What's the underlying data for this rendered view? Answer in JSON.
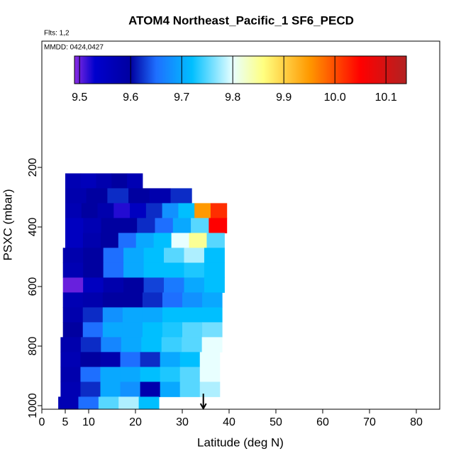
{
  "chart_data": {
    "type": "heatmap",
    "title": "ATOM4 Northeast_Pacific_1 SF6_PECD",
    "subtitle": "Flts: 1,2",
    "annotation": "MMDD: 0424,0427",
    "x_label": "Latitude (deg N)",
    "y_label": "PSXC (mbar)",
    "xlim": [
      0,
      85
    ],
    "xticks": [
      0,
      5,
      10,
      20,
      30,
      40,
      50,
      60,
      70,
      80
    ],
    "ylim": [
      1012,
      -224
    ],
    "yticks": [
      200,
      400,
      600,
      800,
      1000
    ],
    "marker_lat": 34.5,
    "colorbar": {
      "clim": [
        9.49,
        10.14
      ],
      "ticks": [
        9.5,
        9.6,
        9.7,
        9.8,
        9.9,
        {
          "value": 10.0,
          "label": "10.0"
        },
        10.1
      ],
      "colormap": [
        {
          "value": 9.49,
          "color": "#8a2be2"
        },
        {
          "value": 9.53,
          "color": "#0000cd"
        },
        {
          "value": 9.6,
          "color": "#0000a0"
        },
        {
          "value": 9.65,
          "color": "#1e6fff"
        },
        {
          "value": 9.72,
          "color": "#00bfff"
        },
        {
          "value": 9.8,
          "color": "#e8ffff"
        },
        {
          "value": 9.86,
          "color": "#ffff80"
        },
        {
          "value": 9.95,
          "color": "#ff9900"
        },
        {
          "value": 10.05,
          "color": "#ff0000"
        },
        {
          "value": 10.14,
          "color": "#b22222"
        }
      ]
    },
    "rows": [
      {
        "p": [
          220,
          270
        ],
        "lat": [
          5,
          21.5
        ],
        "values": [
          9.57,
          9.56,
          9.58,
          9.6,
          9.57
        ]
      },
      {
        "p": [
          270,
          320
        ],
        "lat": [
          5,
          32
        ],
        "values": [
          9.58,
          9.6,
          9.62,
          9.6,
          9.58,
          9.62
        ]
      },
      {
        "p": [
          320,
          370
        ],
        "lat": [
          5,
          39.5
        ],
        "values": [
          9.57,
          9.6,
          9.58,
          9.52,
          9.55,
          9.62,
          9.68,
          9.72,
          9.95,
          10.02
        ]
      },
      {
        "p": [
          370,
          420
        ],
        "lat": [
          5,
          39.5
        ],
        "values": [
          9.55,
          9.57,
          9.6,
          9.6,
          9.62,
          9.65,
          9.7,
          9.75,
          10.05
        ]
      },
      {
        "p": [
          420,
          470
        ],
        "lat": [
          5,
          39
        ],
        "values": [
          9.55,
          9.58,
          9.6,
          9.65,
          9.7,
          9.72,
          9.8,
          9.85,
          9.75
        ]
      },
      {
        "p": [
          470,
          520
        ],
        "lat": [
          4.5,
          39
        ],
        "values": [
          9.58,
          9.6,
          9.65,
          9.7,
          9.72,
          9.75,
          9.78,
          9.72
        ]
      },
      {
        "p": [
          520,
          570
        ],
        "lat": [
          4.5,
          39
        ],
        "values": [
          9.57,
          9.6,
          9.65,
          9.7,
          9.72,
          9.72,
          9.73,
          9.72
        ]
      },
      {
        "p": [
          570,
          620
        ],
        "lat": [
          4.5,
          39
        ],
        "values": [
          9.5,
          9.55,
          9.58,
          9.6,
          9.63,
          9.66,
          9.7,
          9.72
        ]
      },
      {
        "p": [
          620,
          670
        ],
        "lat": [
          4.5,
          38.5
        ],
        "values": [
          9.57,
          9.58,
          9.6,
          9.6,
          9.62,
          9.65,
          9.68,
          9.7
        ]
      },
      {
        "p": [
          670,
          720
        ],
        "lat": [
          4.5,
          38.5
        ],
        "values": [
          9.58,
          9.62,
          9.68,
          9.7,
          9.7,
          9.72,
          9.72,
          9.72
        ]
      },
      {
        "p": [
          720,
          770
        ],
        "lat": [
          4.5,
          38.5
        ],
        "values": [
          9.6,
          9.65,
          9.7,
          9.7,
          9.72,
          9.73,
          9.75,
          9.76
        ]
      },
      {
        "p": [
          770,
          820
        ],
        "lat": [
          4,
          38.5
        ],
        "values": [
          9.58,
          9.62,
          9.67,
          9.7,
          9.72,
          9.74,
          9.75,
          9.8
        ]
      },
      {
        "p": [
          820,
          870
        ],
        "lat": [
          4,
          38
        ],
        "values": [
          9.57,
          9.6,
          9.58,
          9.65,
          9.62,
          9.7,
          9.72,
          9.8
        ]
      },
      {
        "p": [
          870,
          920
        ],
        "lat": [
          4,
          38
        ],
        "values": [
          9.58,
          9.65,
          9.7,
          9.7,
          9.72,
          9.73,
          9.75,
          9.8
        ]
      },
      {
        "p": [
          920,
          970
        ],
        "lat": [
          4,
          38
        ],
        "values": [
          9.57,
          9.62,
          9.7,
          9.68,
          9.58,
          9.7,
          9.75,
          9.78
        ]
      },
      {
        "p": [
          970,
          1010
        ],
        "lat": [
          3.5,
          25
        ],
        "values": [
          9.57,
          9.65,
          9.75,
          9.78,
          9.72
        ]
      }
    ]
  }
}
